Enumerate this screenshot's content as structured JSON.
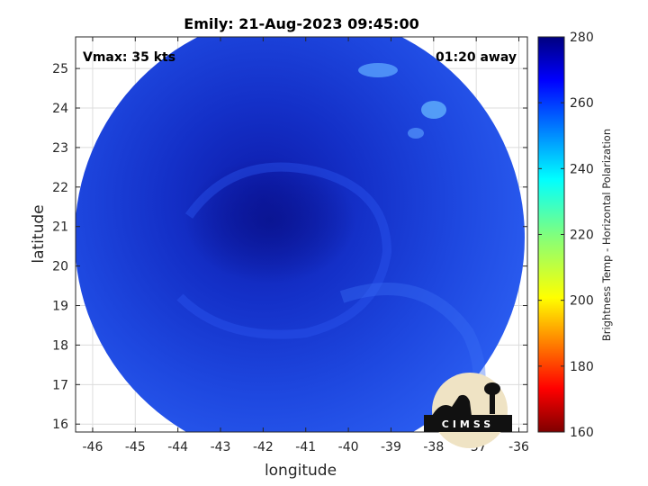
{
  "chart_data": {
    "type": "heatmap",
    "title": "Emily: 21-Aug-2023 09:45:00",
    "xlabel": "longitude",
    "ylabel": "latitude",
    "xlim": [
      -46.4,
      -35.8
    ],
    "ylim": [
      15.8,
      25.8
    ],
    "x_ticks": [
      "-46",
      "-45",
      "-44",
      "-43",
      "-42",
      "-41",
      "-40",
      "-39",
      "-38",
      "-37",
      "-36"
    ],
    "y_ticks": [
      "16",
      "17",
      "18",
      "19",
      "20",
      "21",
      "22",
      "23",
      "24",
      "25"
    ],
    "grid": true,
    "annotations": {
      "vmax": "Vmax: 35 kts",
      "time_away": "01:20 away"
    },
    "colorbar": {
      "label": "Brightness Temp - Horizontal Polarization",
      "range": [
        160,
        280
      ],
      "ticks": [
        "280",
        "260",
        "240",
        "220",
        "200",
        "180",
        "160"
      ],
      "colormap": "jet"
    },
    "swath": {
      "shape": "circle",
      "center_lon": -41,
      "center_lat": 20.8,
      "dominant_range": [
        255,
        275
      ]
    },
    "logo": "CIMSS"
  }
}
